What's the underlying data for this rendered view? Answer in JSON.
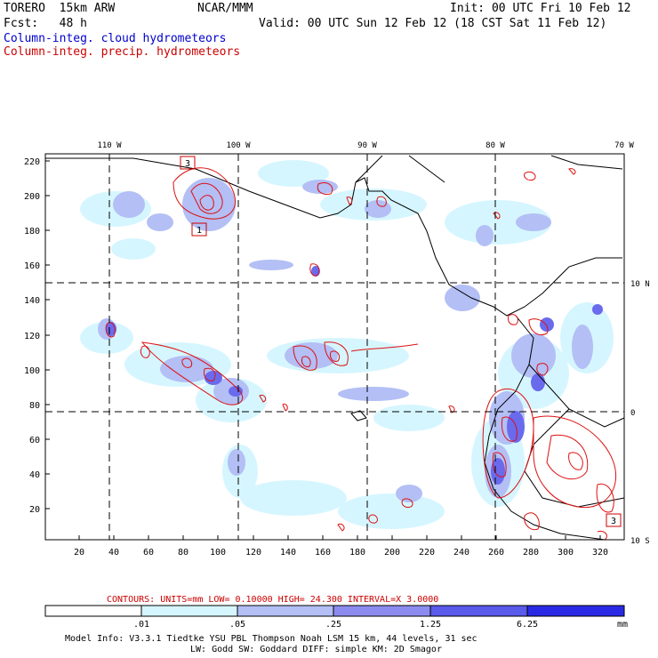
{
  "header": {
    "model": "TORERO  15km ARW",
    "org": "NCAR/MMM",
    "init": "Init: 00 UTC Fri 10 Feb 12",
    "fcst": "Fcst:   48 h",
    "valid": "Valid: 00 UTC Sun 12 Feb 12 (18 CST Sat 11 Feb 12)",
    "field1": "Column-integ. cloud hydrometeors",
    "field2": "Column-integ. precip. hydrometeors"
  },
  "map": {
    "lon_labels": [
      "110 W",
      "100 W",
      "90 W",
      "80 W",
      "70 W"
    ],
    "lat_labels": [
      "10 N",
      "0",
      "10 S"
    ],
    "y_ticks": [
      "220",
      "200",
      "180",
      "160",
      "140",
      "120",
      "100",
      "80",
      "60",
      "40",
      "20"
    ],
    "x_ticks": [
      "20",
      "40",
      "60",
      "80",
      "100",
      "120",
      "140",
      "160",
      "180",
      "200",
      "220",
      "240",
      "260",
      "280",
      "300",
      "320"
    ],
    "box_labels": [
      "3",
      "1",
      "3"
    ]
  },
  "contours": {
    "label": "CONTOURS:  UNITS=mm  LOW= 0.10000     HIGH=  24.300     INTERVAL=X  3.0000"
  },
  "colorbar": {
    "levels": [
      ".01",
      ".05",
      ".25",
      "1.25",
      "6.25"
    ],
    "unit": "mm",
    "colors": [
      "#ffffff",
      "#d6f6ff",
      "#b3bff5",
      "#8c8cf0",
      "#5a5aeb",
      "#2a2ae6"
    ]
  },
  "footer": {
    "line1": "Model Info: V3.3.1   Tiedtke YSU PBL  Thompson    Noah LSM  15 km,   44 levels,   31 sec",
    "line2": "LW: Godd SW: Goddard DIFF: simple KM: 2D Smagor"
  }
}
